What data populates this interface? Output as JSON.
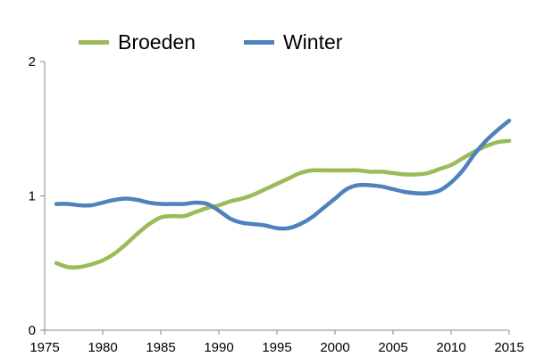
{
  "chart_data": {
    "type": "line",
    "title": "",
    "xlabel": "",
    "ylabel": "",
    "xlim": [
      1975,
      2015
    ],
    "ylim": [
      0,
      2
    ],
    "xticks": [
      1975,
      1980,
      1985,
      1990,
      1995,
      2000,
      2005,
      2010,
      2015
    ],
    "yticks": [
      0,
      1,
      2
    ],
    "legend_position": "top",
    "grid": false,
    "series": [
      {
        "name": "Broeden",
        "color": "#9BBB59",
        "x": [
          1976,
          1977,
          1978,
          1979,
          1980,
          1981,
          1982,
          1983,
          1984,
          1985,
          1986,
          1987,
          1988,
          1989,
          1990,
          1991,
          1992,
          1993,
          1994,
          1995,
          1996,
          1997,
          1998,
          1999,
          2000,
          2001,
          2002,
          2003,
          2004,
          2005,
          2006,
          2007,
          2008,
          2009,
          2010,
          2011,
          2012,
          2013,
          2014,
          2015
        ],
        "values": [
          0.5,
          0.47,
          0.47,
          0.49,
          0.52,
          0.57,
          0.64,
          0.72,
          0.79,
          0.84,
          0.85,
          0.85,
          0.88,
          0.91,
          0.93,
          0.96,
          0.98,
          1.01,
          1.05,
          1.09,
          1.13,
          1.17,
          1.19,
          1.19,
          1.19,
          1.19,
          1.19,
          1.18,
          1.18,
          1.17,
          1.16,
          1.16,
          1.17,
          1.2,
          1.23,
          1.28,
          1.33,
          1.37,
          1.4,
          1.41
        ]
      },
      {
        "name": "Winter",
        "color": "#4F81BD",
        "x": [
          1976,
          1977,
          1978,
          1979,
          1980,
          1981,
          1982,
          1983,
          1984,
          1985,
          1986,
          1987,
          1988,
          1989,
          1990,
          1991,
          1992,
          1993,
          1994,
          1995,
          1996,
          1997,
          1998,
          1999,
          2000,
          2001,
          2002,
          2003,
          2004,
          2005,
          2006,
          2007,
          2008,
          2009,
          2010,
          2011,
          2012,
          2013,
          2014,
          2015
        ],
        "values": [
          0.94,
          0.94,
          0.93,
          0.93,
          0.95,
          0.97,
          0.98,
          0.97,
          0.95,
          0.94,
          0.94,
          0.94,
          0.95,
          0.94,
          0.89,
          0.83,
          0.8,
          0.79,
          0.78,
          0.76,
          0.76,
          0.79,
          0.84,
          0.91,
          0.98,
          1.05,
          1.08,
          1.08,
          1.07,
          1.05,
          1.03,
          1.02,
          1.02,
          1.04,
          1.1,
          1.19,
          1.31,
          1.41,
          1.49,
          1.56
        ]
      }
    ]
  }
}
